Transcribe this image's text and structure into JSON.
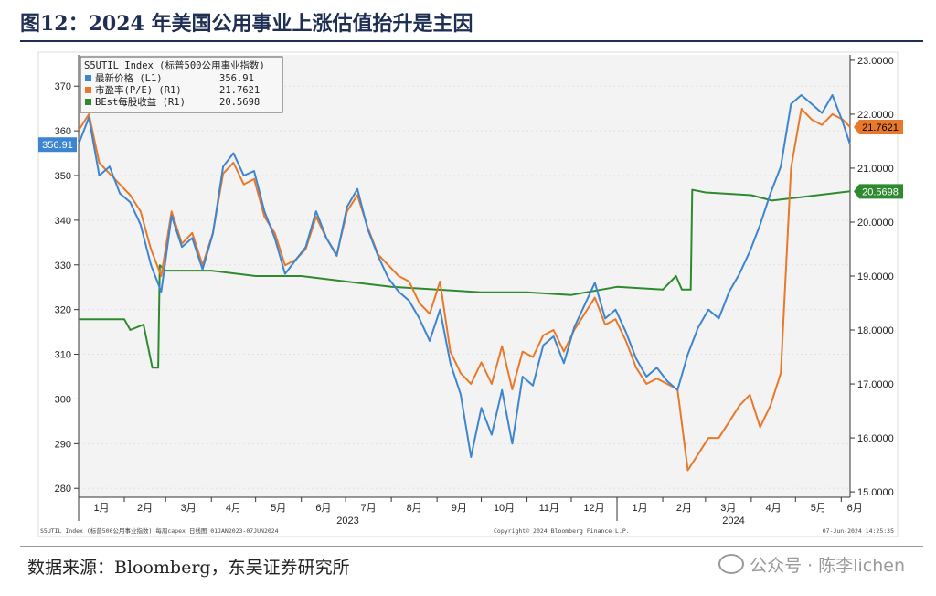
{
  "title": "图12：2024 年美国公用事业上涨估值抬升是主因",
  "source": "数据来源：Bloomberg，东吴证券研究所",
  "watermark": "公众号 · 陈李lichen",
  "colors": {
    "price": "#3d85d0",
    "pe": "#e8792a",
    "eps": "#2f8a2f",
    "plot_bg": "#f3f3f3"
  },
  "chart_data": {
    "type": "line",
    "legend": {
      "header": "S5UTIL Index (标普500公用事业指数)",
      "items": [
        {
          "label": "最新价格 (L1)",
          "value": "356.91"
        },
        {
          "label": "市盈率(P/E) (R1)",
          "value": "21.7621"
        },
        {
          "label": "BEst每股收益 (R1)",
          "value": "20.5698"
        }
      ],
      "placement": "top-left"
    },
    "x_months": [
      "1月",
      "2月",
      "3月",
      "4月",
      "5月",
      "6月",
      "7月",
      "8月",
      "9月",
      "10月",
      "11月",
      "12月",
      "1月",
      "2月",
      "3月",
      "4月",
      "5月",
      "6月"
    ],
    "x_years": [
      "2023",
      "2024"
    ],
    "x_range": [
      "2023-01-01",
      "2024-06-07"
    ],
    "left_axis": {
      "ticks": [
        "370",
        "360",
        "350",
        "340",
        "330",
        "320",
        "310",
        "300",
        "290",
        "280"
      ],
      "ylim": [
        278,
        377
      ]
    },
    "right_axis": {
      "ticks": [
        "23.0000",
        "22.0000",
        "21.0000",
        "20.0000",
        "19.0000",
        "18.0000",
        "17.0000",
        "16.0000",
        "15.0000"
      ],
      "ylim": [
        14.9,
        23.1
      ]
    },
    "last_value_tags": {
      "price": "356.91",
      "pe": "21.7621",
      "eps": "20.5698"
    },
    "series": [
      {
        "name": "最新价格 (L1)",
        "axis": "left",
        "x": [
          "2023-01-01",
          "2023-01-08",
          "2023-01-15",
          "2023-01-22",
          "2023-01-29",
          "2023-02-05",
          "2023-02-12",
          "2023-02-19",
          "2023-02-26",
          "2023-03-05",
          "2023-03-12",
          "2023-03-19",
          "2023-03-26",
          "2023-04-02",
          "2023-04-09",
          "2023-04-16",
          "2023-04-23",
          "2023-04-30",
          "2023-05-07",
          "2023-05-14",
          "2023-05-21",
          "2023-05-28",
          "2023-06-04",
          "2023-06-11",
          "2023-06-18",
          "2023-06-25",
          "2023-07-02",
          "2023-07-09",
          "2023-07-16",
          "2023-07-23",
          "2023-07-30",
          "2023-08-06",
          "2023-08-13",
          "2023-08-20",
          "2023-08-27",
          "2023-09-03",
          "2023-09-10",
          "2023-09-17",
          "2023-09-24",
          "2023-10-01",
          "2023-10-08",
          "2023-10-15",
          "2023-10-22",
          "2023-10-29",
          "2023-11-05",
          "2023-11-12",
          "2023-11-19",
          "2023-11-26",
          "2023-12-03",
          "2023-12-10",
          "2023-12-17",
          "2023-12-24",
          "2023-12-31",
          "2024-01-07",
          "2024-01-14",
          "2024-01-21",
          "2024-01-28",
          "2024-02-04",
          "2024-02-11",
          "2024-02-18",
          "2024-02-25",
          "2024-03-03",
          "2024-03-10",
          "2024-03-17",
          "2024-03-24",
          "2024-03-31",
          "2024-04-07",
          "2024-04-14",
          "2024-04-21",
          "2024-04-28",
          "2024-05-05",
          "2024-05-12",
          "2024-05-19",
          "2024-05-26",
          "2024-06-02",
          "2024-06-07"
        ],
        "values": [
          357,
          363,
          350,
          352,
          346,
          344,
          339,
          330,
          324,
          341,
          334,
          336,
          329,
          337,
          352,
          355,
          350,
          351,
          342,
          336,
          328,
          331,
          334,
          342,
          336,
          332,
          343,
          347,
          338,
          332,
          327,
          324,
          322,
          318,
          313,
          320,
          308,
          301,
          287,
          298,
          292,
          302,
          290,
          305,
          303,
          312,
          314,
          308,
          316,
          321,
          326,
          318,
          320,
          315,
          309,
          305,
          307,
          304,
          302,
          310,
          316,
          320,
          318,
          324,
          328,
          333,
          339,
          346,
          352,
          366,
          368,
          366,
          364,
          368,
          362,
          356.91
        ]
      },
      {
        "name": "市盈率(P/E) (R1)",
        "axis": "right",
        "x": [
          "2023-01-01",
          "2023-01-08",
          "2023-01-15",
          "2023-01-22",
          "2023-01-29",
          "2023-02-05",
          "2023-02-12",
          "2023-02-19",
          "2023-02-26",
          "2023-03-05",
          "2023-03-12",
          "2023-03-19",
          "2023-03-26",
          "2023-04-02",
          "2023-04-09",
          "2023-04-16",
          "2023-04-23",
          "2023-04-30",
          "2023-05-07",
          "2023-05-14",
          "2023-05-21",
          "2023-05-28",
          "2023-06-04",
          "2023-06-11",
          "2023-06-18",
          "2023-06-25",
          "2023-07-02",
          "2023-07-09",
          "2023-07-16",
          "2023-07-23",
          "2023-07-30",
          "2023-08-06",
          "2023-08-13",
          "2023-08-20",
          "2023-08-27",
          "2023-09-03",
          "2023-09-10",
          "2023-09-17",
          "2023-09-24",
          "2023-10-01",
          "2023-10-08",
          "2023-10-15",
          "2023-10-22",
          "2023-10-29",
          "2023-11-05",
          "2023-11-12",
          "2023-11-19",
          "2023-11-26",
          "2023-12-03",
          "2023-12-10",
          "2023-12-17",
          "2023-12-24",
          "2023-12-31",
          "2024-01-07",
          "2024-01-14",
          "2024-01-21",
          "2024-01-28",
          "2024-02-04",
          "2024-02-11",
          "2024-02-18",
          "2024-02-25",
          "2024-03-03",
          "2024-03-10",
          "2024-03-17",
          "2024-03-24",
          "2024-03-31",
          "2024-04-07",
          "2024-04-14",
          "2024-04-21",
          "2024-04-28",
          "2024-05-05",
          "2024-05-12",
          "2024-05-19",
          "2024-05-26",
          "2024-06-02",
          "2024-06-07"
        ],
        "values": [
          21.7,
          22.0,
          21.1,
          20.9,
          20.7,
          20.5,
          20.2,
          19.5,
          19.0,
          20.2,
          19.6,
          19.8,
          19.2,
          19.8,
          20.9,
          21.1,
          20.7,
          20.8,
          20.1,
          19.8,
          19.2,
          19.3,
          19.5,
          20.1,
          19.7,
          19.4,
          20.2,
          20.5,
          19.9,
          19.4,
          19.2,
          19.0,
          18.9,
          18.5,
          18.3,
          18.9,
          17.6,
          17.2,
          17.0,
          17.4,
          17.0,
          17.7,
          16.9,
          17.6,
          17.5,
          17.9,
          18.0,
          17.6,
          18.0,
          18.3,
          18.6,
          18.1,
          18.2,
          17.8,
          17.3,
          17.0,
          17.1,
          17.0,
          16.9,
          15.4,
          15.7,
          16.0,
          16.0,
          16.3,
          16.6,
          16.8,
          16.2,
          16.6,
          17.2,
          21.0,
          22.1,
          21.9,
          21.8,
          22.0,
          21.9,
          21.7621
        ]
      },
      {
        "name": "BEst每股收益 (R1)",
        "axis": "right",
        "x": [
          "2023-01-01",
          "2023-02-01",
          "2023-02-05",
          "2023-02-14",
          "2023-02-20",
          "2023-02-24",
          "2023-02-25",
          "2023-03-01",
          "2023-04-01",
          "2023-05-01",
          "2023-06-01",
          "2023-07-01",
          "2023-08-01",
          "2023-09-01",
          "2023-10-01",
          "2023-11-01",
          "2023-12-01",
          "2024-01-01",
          "2024-02-01",
          "2024-02-10",
          "2024-02-14",
          "2024-02-20",
          "2024-02-21",
          "2024-03-01",
          "2024-04-01",
          "2024-04-15",
          "2024-05-01",
          "2024-06-07"
        ],
        "values": [
          18.2,
          18.2,
          18.0,
          18.1,
          17.3,
          17.3,
          19.2,
          19.1,
          19.1,
          19.0,
          19.0,
          18.9,
          18.8,
          18.75,
          18.7,
          18.7,
          18.65,
          18.8,
          18.75,
          19.0,
          18.75,
          18.75,
          20.6,
          20.55,
          20.5,
          20.4,
          20.45,
          20.5698
        ]
      }
    ],
    "footer": {
      "left": "S5UTIL Index (标普500公用事业指数) 每周capex  日线图 01JAN2023-07JUN2024",
      "center": "Copyright© 2024 Bloomberg Finance L.P.",
      "right": "07-Jun-2024 14:25:35"
    }
  }
}
